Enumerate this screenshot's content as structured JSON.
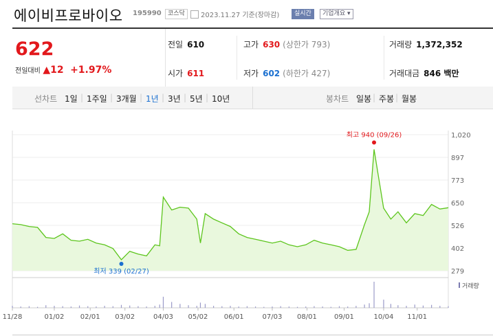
{
  "header": {
    "name": "에이비프로바이오",
    "code": "195990",
    "market_tag": "코스닥",
    "date_text": "2023.11.27 기준(장마감)",
    "live_tag": "실시간",
    "info_tag": "기업개요 ▾"
  },
  "summary": {
    "price": "622",
    "change_label": "전일대비",
    "change_value": "▲12",
    "change_pct": "+1.97%",
    "prev_label": "전일",
    "prev_value": "610",
    "high_label": "고가",
    "high_value": "630",
    "high_limit": "(상한가 793)",
    "volume_label": "거래량",
    "volume_value": "1,372,352",
    "open_label": "시가",
    "open_value": "611",
    "low_label": "저가",
    "low_value": "602",
    "low_limit": "(하한가 427)",
    "amount_label": "거래대금",
    "amount_value": "846 백만"
  },
  "controls": {
    "line_label": "선차트",
    "ranges": [
      "1일",
      "1주일",
      "3개월",
      "1년",
      "3년",
      "5년",
      "10년"
    ],
    "active_range": "1년",
    "candle_label": "봉차트",
    "candles": [
      "일봉",
      "주봉",
      "월봉"
    ]
  },
  "colors": {
    "up": "#e2181c",
    "down": "#1a6fd0",
    "line": "#5cc51c",
    "fill": "#e9f8dd"
  },
  "chart_data": {
    "type": "area",
    "ylim": [
      279,
      1020
    ],
    "y_ticks": [
      "1,020",
      "897",
      "773",
      "650",
      "526",
      "402",
      "279"
    ],
    "x_tick_labels": [
      "11/28",
      "01/02",
      "02/01",
      "03/02",
      "04/03",
      "05/02",
      "06/01",
      "07/03",
      "08/01",
      "09/01",
      "10/04",
      "11/01"
    ],
    "x": [
      "2022-11-28",
      "2022-12-05",
      "2022-12-12",
      "2022-12-19",
      "2022-12-26",
      "2023-01-02",
      "2023-01-09",
      "2023-01-16",
      "2023-01-23",
      "2023-01-30",
      "2023-02-06",
      "2023-02-13",
      "2023-02-20",
      "2023-02-27",
      "2023-03-06",
      "2023-03-13",
      "2023-03-20",
      "2023-03-27",
      "2023-03-31",
      "2023-04-03",
      "2023-04-10",
      "2023-04-17",
      "2023-04-24",
      "2023-05-01",
      "2023-05-04",
      "2023-05-08",
      "2023-05-15",
      "2023-05-22",
      "2023-05-29",
      "2023-06-05",
      "2023-06-12",
      "2023-06-19",
      "2023-06-26",
      "2023-07-03",
      "2023-07-10",
      "2023-07-17",
      "2023-07-24",
      "2023-07-31",
      "2023-08-07",
      "2023-08-14",
      "2023-08-21",
      "2023-08-28",
      "2023-09-04",
      "2023-09-11",
      "2023-09-18",
      "2023-09-22",
      "2023-09-26",
      "2023-10-04",
      "2023-10-10",
      "2023-10-16",
      "2023-10-23",
      "2023-10-30",
      "2023-11-06",
      "2023-11-13",
      "2023-11-20",
      "2023-11-27"
    ],
    "values": [
      535,
      530,
      520,
      515,
      460,
      455,
      480,
      445,
      440,
      450,
      430,
      420,
      400,
      339,
      385,
      370,
      360,
      420,
      415,
      680,
      610,
      625,
      620,
      560,
      430,
      590,
      560,
      540,
      520,
      480,
      460,
      450,
      440,
      430,
      440,
      420,
      410,
      420,
      445,
      430,
      420,
      410,
      390,
      395,
      530,
      600,
      940,
      620,
      560,
      600,
      540,
      590,
      580,
      640,
      615,
      622
    ],
    "annotations": [
      {
        "label": "최고 940 (09/26)",
        "x": "2023-09-26",
        "y": 940
      },
      {
        "label": "최저 339 (02/27)",
        "x": "2023-02-27",
        "y": 339
      }
    ],
    "volume_legend": "거래량",
    "volume": [
      6,
      4,
      5,
      3,
      8,
      6,
      5,
      4,
      7,
      5,
      4,
      6,
      5,
      9,
      7,
      5,
      4,
      6,
      10,
      34,
      18,
      12,
      8,
      6,
      16,
      12,
      6,
      5,
      6,
      4,
      5,
      4,
      3,
      4,
      5,
      4,
      3,
      4,
      5,
      4,
      3,
      5,
      4,
      6,
      10,
      14,
      80,
      25,
      12,
      8,
      6,
      10,
      7,
      9,
      6,
      5
    ]
  }
}
